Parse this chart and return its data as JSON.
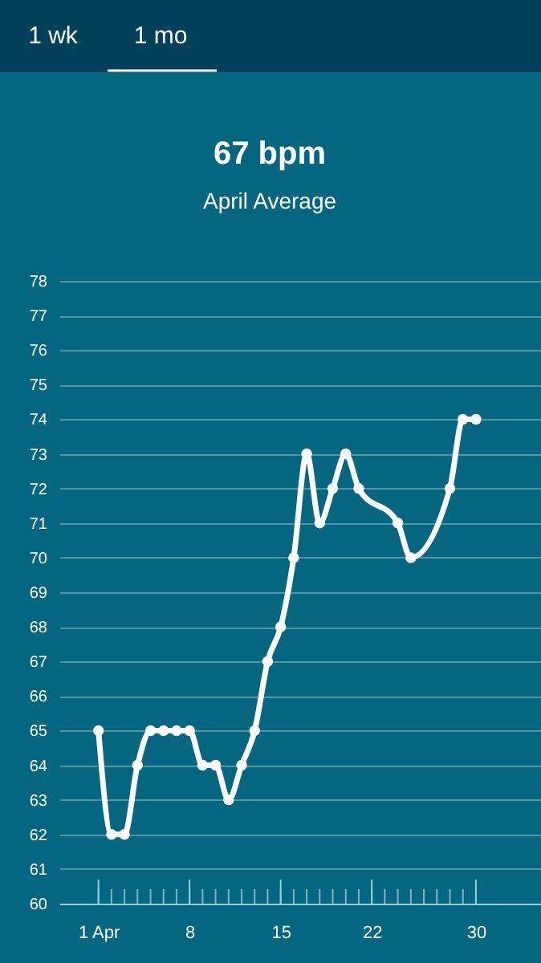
{
  "chart_data": {
    "type": "line",
    "title": "67 bpm",
    "subtitle": "April Average",
    "annotations": [
      "1 wk",
      "1 mo"
    ],
    "x": [
      1,
      2,
      3,
      4,
      5,
      6,
      7,
      8,
      9,
      10,
      11,
      12,
      13,
      14,
      15,
      16,
      17,
      18,
      19,
      20,
      21,
      24,
      25,
      28,
      29,
      30
    ],
    "series": [
      {
        "color": "#ffffff",
        "values": [
          65,
          62,
          62,
          64,
          65,
          65,
          65,
          65,
          64,
          64,
          63,
          64,
          65,
          67,
          68,
          70,
          73,
          71,
          72,
          73,
          72,
          71,
          70,
          72,
          74,
          74
        ]
      }
    ],
    "xlim": [
      -2,
      35
    ],
    "ylim": [
      60,
      78
    ],
    "xticks": [
      {
        "value": 1,
        "label": "1 Apr"
      },
      {
        "value": 2,
        "label": null
      },
      {
        "value": 3,
        "label": null
      },
      {
        "value": 4,
        "label": null
      },
      {
        "value": 5,
        "label": null
      },
      {
        "value": 6,
        "label": null
      },
      {
        "value": 7,
        "label": null
      },
      8,
      {
        "value": 9,
        "label": null
      },
      {
        "value": 10,
        "label": null
      },
      {
        "value": 11,
        "label": null
      },
      {
        "value": 12,
        "label": null
      },
      {
        "value": 13,
        "label": null
      },
      {
        "value": 14,
        "label": null
      },
      15,
      {
        "value": 16,
        "label": null
      },
      {
        "value": 17,
        "label": null
      },
      {
        "value": 18,
        "label": null
      },
      {
        "value": 19,
        "label": null
      },
      {
        "value": 20,
        "label": null
      },
      {
        "value": 21,
        "label": null
      },
      22,
      {
        "value": 23,
        "label": null
      },
      {
        "value": 24,
        "label": null
      },
      {
        "value": 25,
        "label": null
      },
      {
        "value": 26,
        "label": null
      },
      {
        "value": 27,
        "label": null
      },
      {
        "value": 28,
        "label": null
      },
      {
        "value": 29,
        "label": null
      },
      30
    ],
    "yticks": [
      60,
      61,
      62,
      63,
      64,
      65,
      66,
      67,
      68,
      69,
      70,
      71,
      72,
      73,
      74,
      75,
      76,
      77,
      78
    ],
    "grid": "y",
    "marker": "circle",
    "line_style": "solid"
  }
}
